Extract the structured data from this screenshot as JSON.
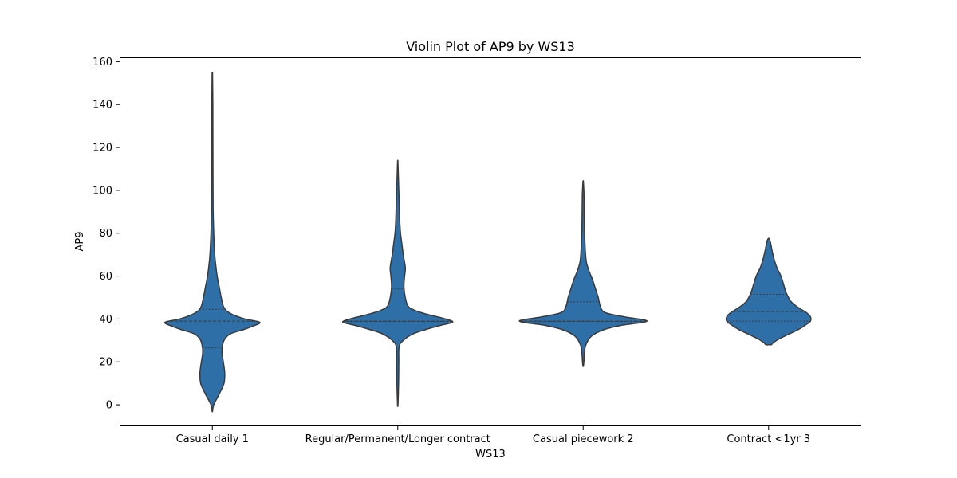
{
  "chart_data": {
    "type": "violin",
    "title": "Violin Plot of AP9 by WS13",
    "xlabel": "WS13",
    "ylabel": "AP9",
    "ylim": [
      -10,
      162
    ],
    "y_ticks": [
      0,
      20,
      40,
      60,
      80,
      100,
      120,
      140,
      160
    ],
    "grid": false,
    "legend": "none",
    "color": "#2e6fa8",
    "edge_color": "#3a3a3a",
    "categories": [
      "Casual daily 1",
      "Regular/Permanent/Longer contract",
      "Casual piecework 2",
      "Contract <1yr 3"
    ],
    "violins": [
      {
        "category": "Casual daily 1",
        "min": -3,
        "max": 154,
        "q1": 26.5,
        "median": 39,
        "q3": 44.5,
        "density": [
          [
            -3,
            0.3
          ],
          [
            0,
            2
          ],
          [
            5,
            10
          ],
          [
            10,
            17
          ],
          [
            15,
            18
          ],
          [
            20,
            16
          ],
          [
            25,
            14
          ],
          [
            30,
            17
          ],
          [
            33,
            26
          ],
          [
            35,
            45
          ],
          [
            37,
            62
          ],
          [
            38.5,
            69
          ],
          [
            40,
            48
          ],
          [
            42,
            30
          ],
          [
            44,
            20
          ],
          [
            46,
            16
          ],
          [
            50,
            13
          ],
          [
            55,
            10
          ],
          [
            60,
            7
          ],
          [
            65,
            5
          ],
          [
            70,
            3.5
          ],
          [
            80,
            2
          ],
          [
            90,
            1.2
          ],
          [
            100,
            1
          ],
          [
            120,
            0.8
          ],
          [
            140,
            0.7
          ],
          [
            154,
            0.3
          ]
        ]
      },
      {
        "category": "Regular/Permanent/Longer contract",
        "min": 0,
        "max": 113,
        "q1": 38.8,
        "median": 39,
        "q3": 54,
        "density": [
          [
            0,
            0.3
          ],
          [
            10,
            1.2
          ],
          [
            20,
            1.5
          ],
          [
            27,
            2
          ],
          [
            30,
            8
          ],
          [
            33,
            22
          ],
          [
            35,
            40
          ],
          [
            37,
            62
          ],
          [
            38.5,
            80
          ],
          [
            40,
            70
          ],
          [
            42,
            45
          ],
          [
            44,
            25
          ],
          [
            46,
            15
          ],
          [
            50,
            11
          ],
          [
            55,
            9
          ],
          [
            60,
            10
          ],
          [
            64,
            11
          ],
          [
            70,
            8
          ],
          [
            75,
            6
          ],
          [
            80,
            4
          ],
          [
            85,
            3
          ],
          [
            90,
            2.5
          ],
          [
            95,
            2
          ],
          [
            100,
            1.5
          ],
          [
            113,
            0.3
          ]
        ]
      },
      {
        "category": "Casual piecework 2",
        "min": 18,
        "max": 104,
        "q1": 38.8,
        "median": 39,
        "q3": 48,
        "density": [
          [
            18,
            0.3
          ],
          [
            20,
            1
          ],
          [
            25,
            2
          ],
          [
            28,
            4
          ],
          [
            32,
            12
          ],
          [
            35,
            30
          ],
          [
            37,
            55
          ],
          [
            39,
            93
          ],
          [
            41,
            60
          ],
          [
            43,
            32
          ],
          [
            46,
            25
          ],
          [
            50,
            22
          ],
          [
            54,
            18
          ],
          [
            58,
            14
          ],
          [
            62,
            9
          ],
          [
            66,
            5
          ],
          [
            70,
            3.5
          ],
          [
            80,
            2
          ],
          [
            90,
            1.5
          ],
          [
            98,
            1.2
          ],
          [
            104,
            0.3
          ]
        ]
      },
      {
        "category": "Contract <1yr 3",
        "min": 28,
        "max": 77.5,
        "q1": 39,
        "median": 43.5,
        "q3": 51.5,
        "density": [
          [
            28,
            4
          ],
          [
            29,
            7
          ],
          [
            31,
            17
          ],
          [
            33,
            30
          ],
          [
            35,
            43
          ],
          [
            37,
            53
          ],
          [
            39,
            61
          ],
          [
            41,
            61
          ],
          [
            43,
            55
          ],
          [
            45,
            45
          ],
          [
            48,
            33
          ],
          [
            52,
            26
          ],
          [
            56,
            22
          ],
          [
            60,
            18
          ],
          [
            64,
            12
          ],
          [
            68,
            8
          ],
          [
            72,
            5
          ],
          [
            76,
            2.5
          ],
          [
            77.5,
            0.5
          ]
        ]
      }
    ]
  }
}
